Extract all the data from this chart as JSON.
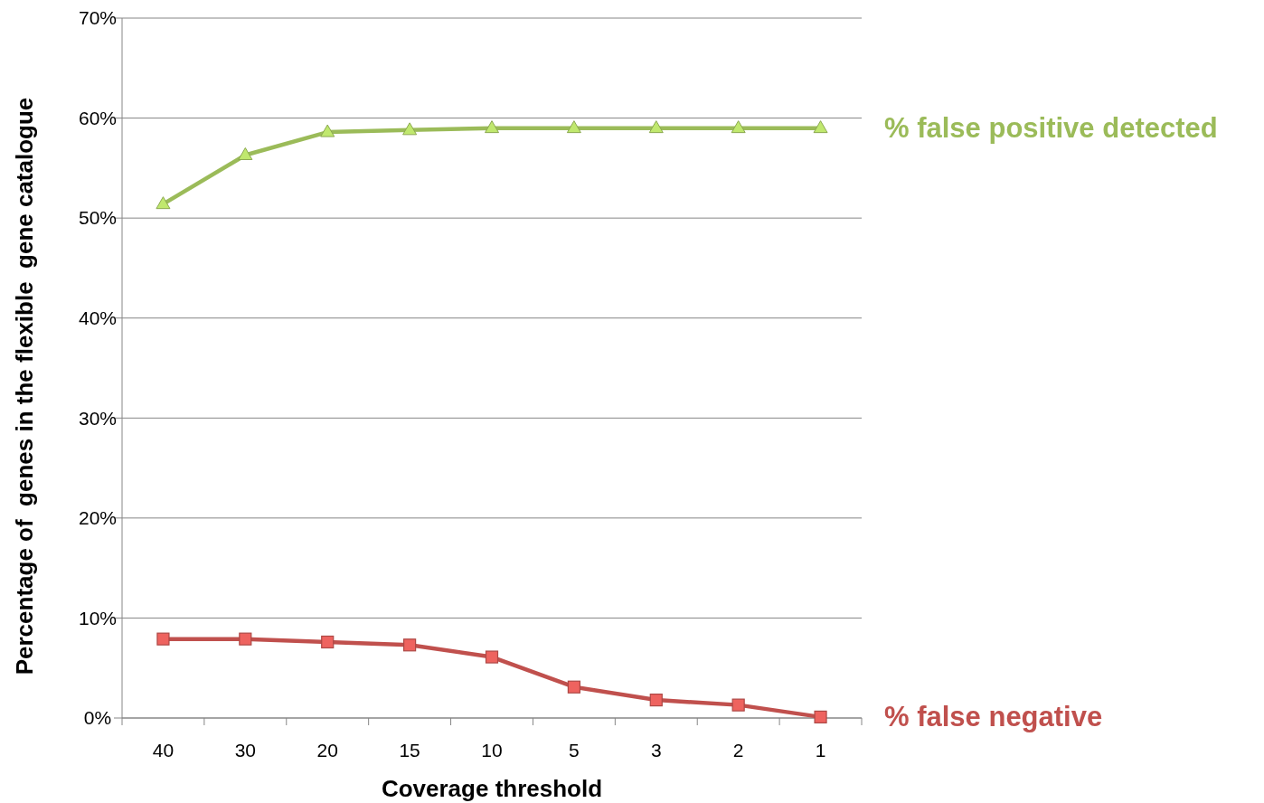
{
  "chart_data": {
    "type": "line",
    "xlabel": "Coverage threshold",
    "ylabel": "Percentage of  genes in the flexible  gene catalogue",
    "categories": [
      "40",
      "30",
      "20",
      "15",
      "10",
      "5",
      "3",
      "2",
      "1"
    ],
    "series": [
      {
        "name": "% false positive detected",
        "color": "#9bbb59",
        "marker": "triangle",
        "values": [
          51.4,
          56.3,
          58.6,
          58.8,
          59.0,
          59.0,
          59.0,
          59.0,
          59.0
        ]
      },
      {
        "name": "% false negative",
        "color": "#c0504d",
        "marker": "square",
        "values": [
          7.9,
          7.9,
          7.6,
          7.3,
          6.1,
          3.1,
          1.8,
          1.3,
          0.1
        ]
      }
    ],
    "ylim": [
      0,
      70
    ],
    "yticks": [
      {
        "value": 0,
        "label": "0%"
      },
      {
        "value": 10,
        "label": "10%"
      },
      {
        "value": 20,
        "label": "20%"
      },
      {
        "value": 30,
        "label": "30%"
      },
      {
        "value": 40,
        "label": "40%"
      },
      {
        "value": 50,
        "label": "50%"
      },
      {
        "value": 60,
        "label": "60%"
      },
      {
        "value": 70,
        "label": "70%"
      }
    ],
    "grid": "y",
    "legend": false
  }
}
